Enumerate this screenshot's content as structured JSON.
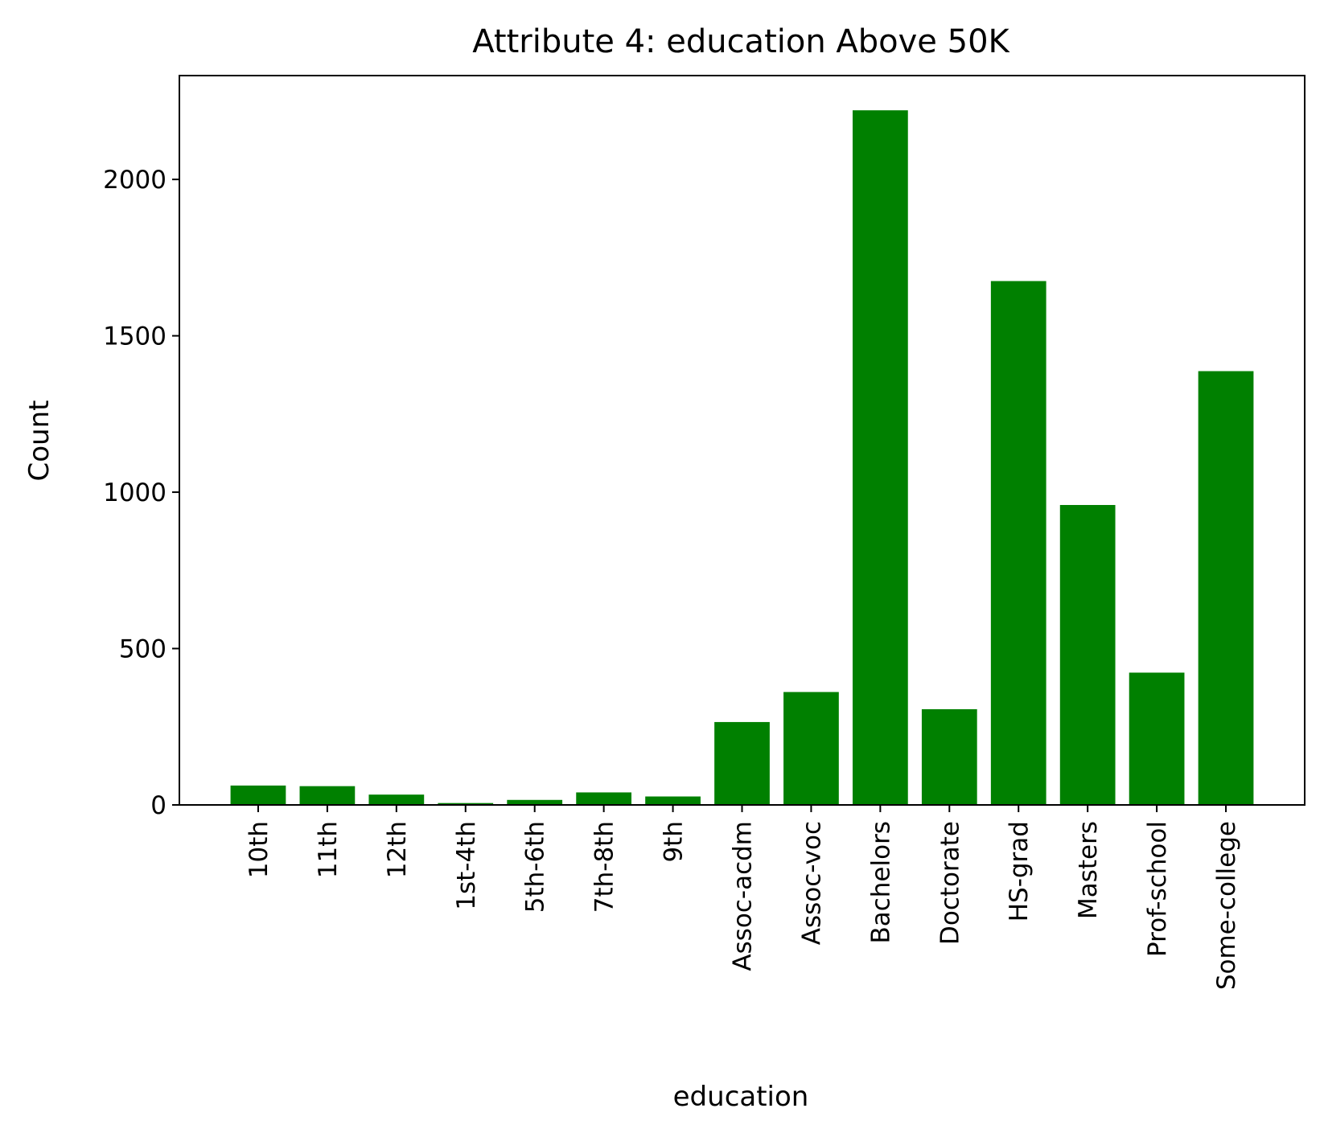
{
  "chart_data": {
    "type": "bar",
    "title": "Attribute 4: education Above 50K",
    "xlabel": "education",
    "ylabel": "Count",
    "categories": [
      "10th",
      "11th",
      "12th",
      "1st-4th",
      "5th-6th",
      "7th-8th",
      "9th",
      "Assoc-acdm",
      "Assoc-voc",
      "Bachelors",
      "Doctorate",
      "HS-grad",
      "Masters",
      "Prof-school",
      "Some-college"
    ],
    "values": [
      62,
      60,
      33,
      6,
      16,
      40,
      27,
      265,
      361,
      2221,
      306,
      1675,
      959,
      423,
      1387
    ],
    "ylim": [
      0,
      2332
    ],
    "yticks": [
      0,
      500,
      1000,
      1500,
      2000
    ],
    "bar_color": "#008000",
    "grid": false,
    "legend": "none"
  }
}
